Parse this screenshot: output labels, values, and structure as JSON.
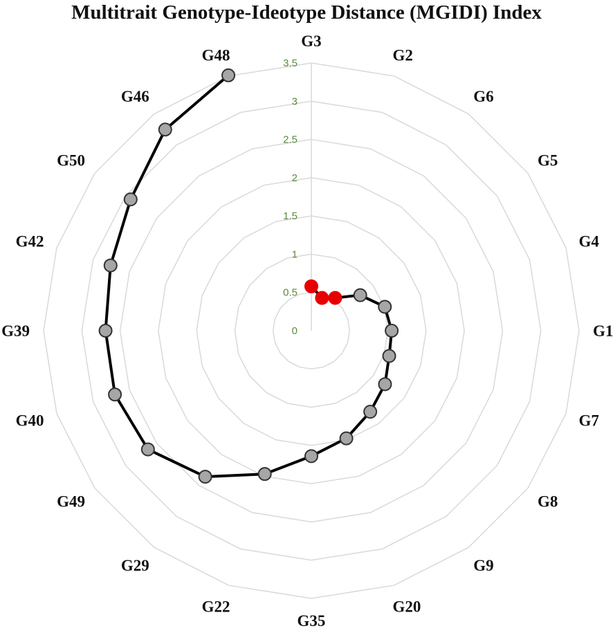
{
  "chart_data": {
    "type": "radar",
    "title": "Multitrait Genotype-Ideotype Distance (MGIDI) Index",
    "axes": [
      "G3",
      "G2",
      "G6",
      "G5",
      "G4",
      "G1",
      "G7",
      "G8",
      "G9",
      "G20",
      "G35",
      "G22",
      "G29",
      "G49",
      "G40",
      "G39",
      "G42",
      "G50",
      "G46",
      "G48"
    ],
    "values": [
      0.58,
      0.45,
      0.53,
      0.79,
      1.01,
      1.05,
      1.07,
      1.19,
      1.31,
      1.48,
      1.64,
      1.97,
      2.36,
      2.64,
      2.7,
      2.69,
      2.76,
      2.92,
      3.25,
      3.51
    ],
    "selected_count": 3,
    "rlim": [
      0,
      3.5
    ],
    "ticks": [
      "0",
      "0.5",
      "1",
      "1.5",
      "2",
      "2.5",
      "3",
      "3.5"
    ],
    "tick_values": [
      0,
      0.5,
      1,
      1.5,
      2,
      2.5,
      3,
      3.5
    ],
    "grid": true,
    "colors": {
      "line": "#000000",
      "selected_point": "#e60000",
      "point": "#a6a6a6",
      "grid": "#d9d9d9",
      "tick": "#5b8a3c"
    }
  }
}
